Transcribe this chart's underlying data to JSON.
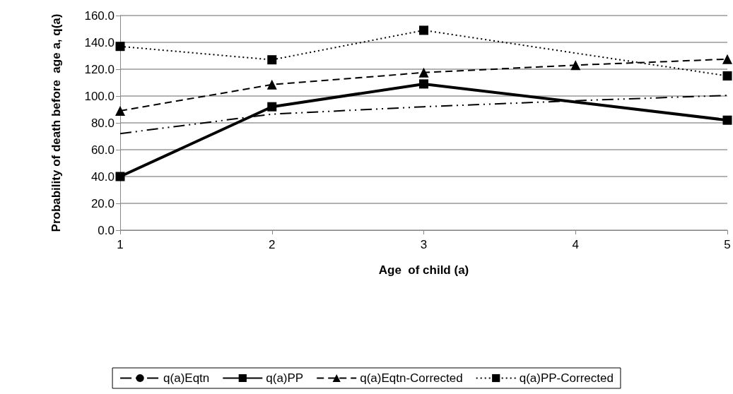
{
  "chart_data": {
    "type": "line",
    "xlabel": "Age  of child (a)",
    "ylabel": "Probability of death before  age a, q(a)",
    "categories": [
      "1",
      "2",
      "3",
      "4",
      "5"
    ],
    "ylim": [
      0,
      160
    ],
    "yticks": [
      {
        "value": 0,
        "label": "0.0"
      },
      {
        "value": 20,
        "label": "20.0"
      },
      {
        "value": 40,
        "label": "40.0"
      },
      {
        "value": 60,
        "label": "60.0"
      },
      {
        "value": 80,
        "label": "80.0"
      },
      {
        "value": 100,
        "label": "100.0"
      },
      {
        "value": 120,
        "label": "120.0"
      },
      {
        "value": 140,
        "label": "140.0"
      },
      {
        "value": 160,
        "label": "160.0"
      }
    ],
    "grid": "y",
    "legend": "bottom",
    "series": [
      {
        "name": "q(a)Eqtn",
        "color": "#000000",
        "marker": "none",
        "line_style": "dashdot",
        "values": [
          72,
          86.5,
          92,
          96.5,
          100.5
        ]
      },
      {
        "name": "q(a)PP",
        "color": "#000000",
        "marker": "square",
        "line_style": "solid",
        "values": [
          40,
          92,
          109,
          null,
          82
        ]
      },
      {
        "name": "q(a)Eqtn-Corrected",
        "color": "#000000",
        "marker": "triangle",
        "line_style": "dashed",
        "values": [
          89,
          108.5,
          117.5,
          123,
          127.5
        ]
      },
      {
        "name": "q(a)PP-Corrected",
        "color": "#000000",
        "marker": "square",
        "line_style": "dotted",
        "values": [
          137,
          127,
          149,
          null,
          115
        ]
      }
    ]
  }
}
